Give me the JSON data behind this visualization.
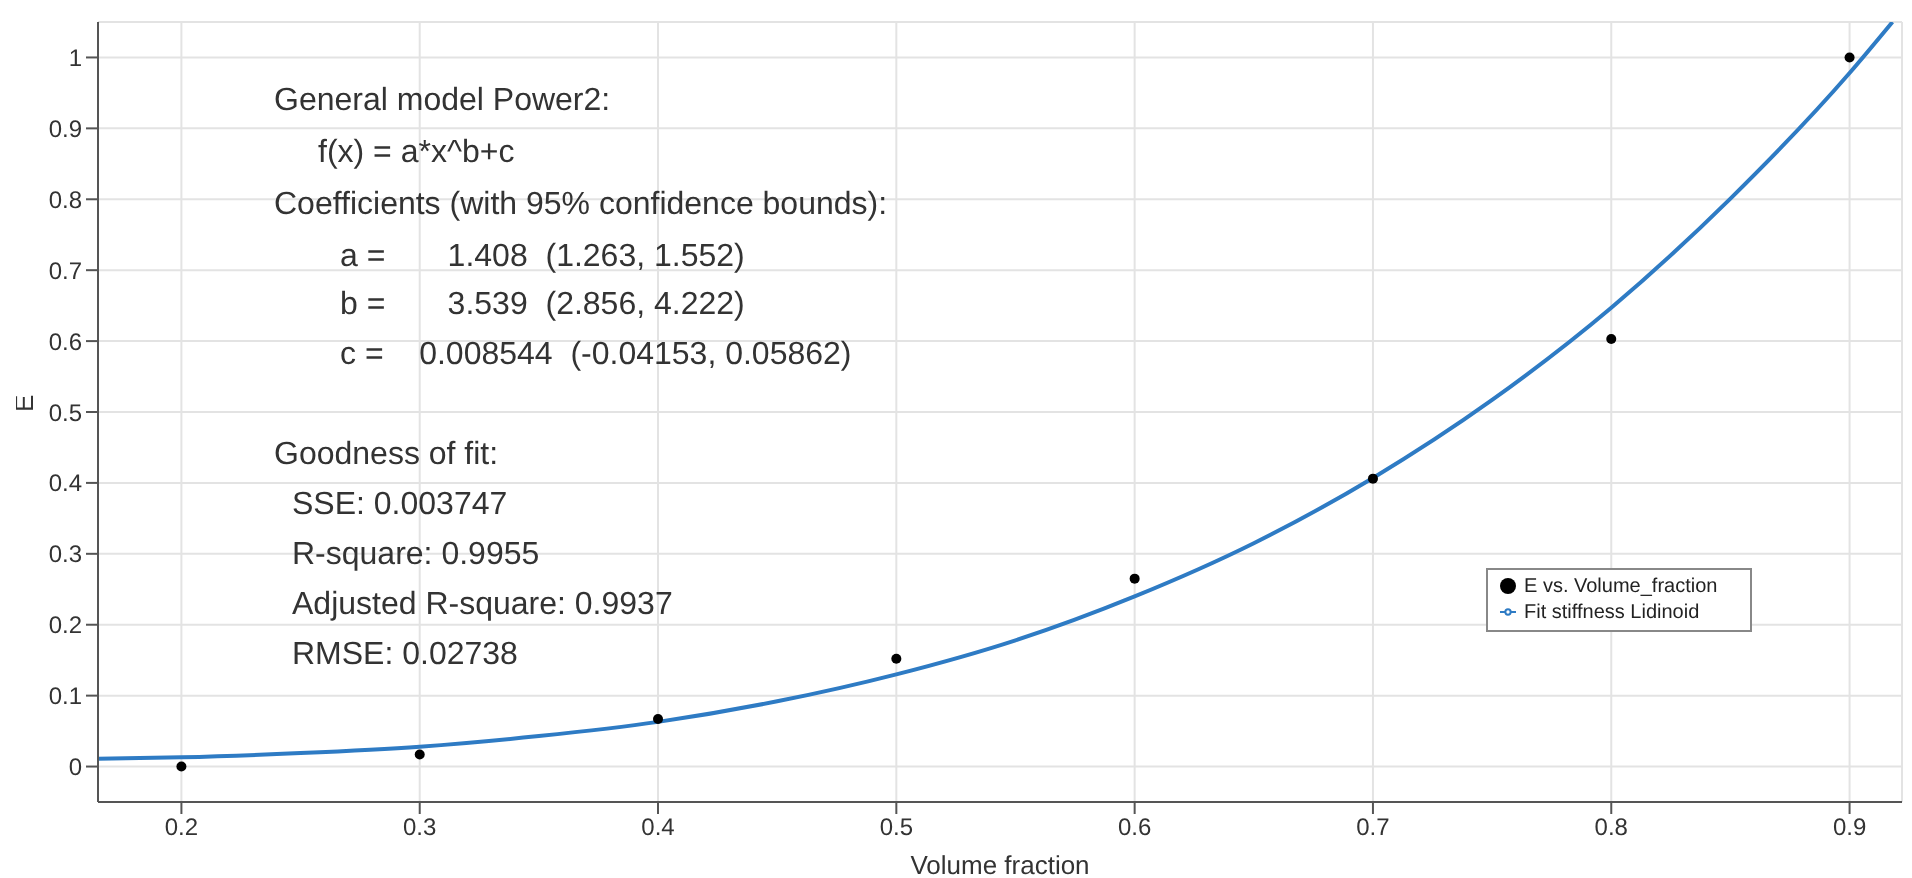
{
  "chart_data": {
    "type": "scatter",
    "xlabel": "Volume fraction",
    "ylabel": "E",
    "xlim": [
      0.165,
      0.922
    ],
    "ylim": [
      -0.05,
      1.05
    ],
    "xticks": [
      0.2,
      0.3,
      0.4,
      0.5,
      0.6,
      0.7,
      0.8,
      0.9
    ],
    "yticks": [
      0,
      0.1,
      0.2,
      0.3,
      0.4,
      0.5,
      0.6,
      0.7,
      0.8,
      0.9,
      1
    ],
    "grid": true,
    "legend": "right",
    "marker": "circle",
    "series": [
      {
        "name": "E vs. Volume_fraction",
        "type": "scatter",
        "color": "#000000",
        "x": [
          0.2,
          0.3,
          0.4,
          0.5,
          0.6,
          0.7,
          0.8,
          0.9
        ],
        "values": [
          0.0,
          0.017,
          0.067,
          0.152,
          0.265,
          0.406,
          0.603,
          1.0
        ]
      },
      {
        "name": "Fit stiffness Lidinoid",
        "type": "line",
        "color": "#2e7bc4",
        "marker": "none",
        "x": [
          0.165,
          0.2,
          0.25,
          0.3,
          0.35,
          0.4,
          0.45,
          0.5,
          0.55,
          0.6,
          0.65,
          0.7,
          0.75,
          0.8,
          0.85,
          0.9,
          0.918
        ],
        "values": [
          0.011,
          0.013,
          0.019,
          0.028,
          0.043,
          0.063,
          0.092,
          0.13,
          0.178,
          0.24,
          0.315,
          0.407,
          0.517,
          0.647,
          0.801,
          0.978,
          1.05
        ]
      }
    ],
    "annotations": [
      "General model Power2:",
      "f(x) = a*x^b+c",
      "Coefficients (with 95% confidence bounds):",
      "a =       1.408  (1.263, 1.552)",
      "b =       3.539  (2.856, 4.222)",
      "c =    0.008544  (-0.04153, 0.05862)",
      "Goodness of fit:",
      "SSE: 0.003747",
      "R-square: 0.9955",
      "Adjusted R-square: 0.9937",
      "RMSE: 0.02738"
    ]
  }
}
